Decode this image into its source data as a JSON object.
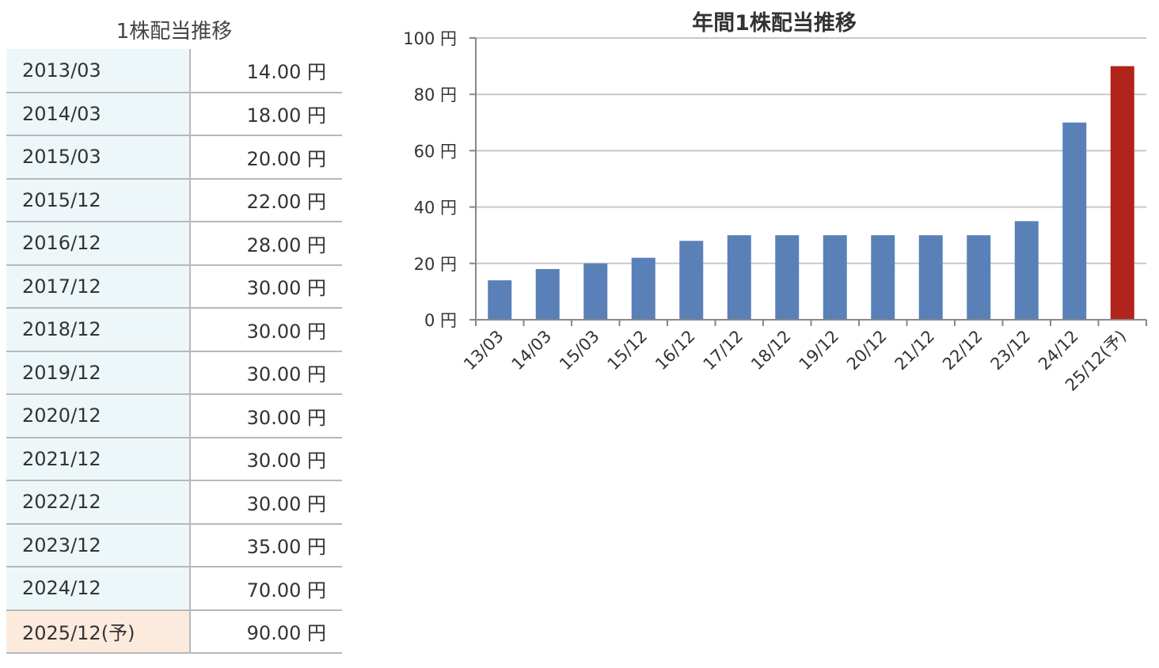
{
  "table": {
    "title": "1株配当推移",
    "unit": "円",
    "rows": [
      {
        "period": "2013/03",
        "amount": "14.00 円"
      },
      {
        "period": "2014/03",
        "amount": "18.00 円"
      },
      {
        "period": "2015/03",
        "amount": "20.00 円"
      },
      {
        "period": "2015/12",
        "amount": "22.00 円"
      },
      {
        "period": "2016/12",
        "amount": "28.00 円"
      },
      {
        "period": "2017/12",
        "amount": "30.00 円"
      },
      {
        "period": "2018/12",
        "amount": "30.00 円"
      },
      {
        "period": "2019/12",
        "amount": "30.00 円"
      },
      {
        "period": "2020/12",
        "amount": "30.00 円"
      },
      {
        "period": "2021/12",
        "amount": "30.00 円"
      },
      {
        "period": "2022/12",
        "amount": "30.00 円"
      },
      {
        "period": "2023/12",
        "amount": "35.00 円"
      },
      {
        "period": "2024/12",
        "amount": "70.00 円"
      },
      {
        "period": "2025/12(予)",
        "amount": "90.00 円",
        "forecast": true
      }
    ],
    "colors": {
      "period_bg": "#edf7fa",
      "forecast_bg": "#fcebdd",
      "border": "#b8b8b8"
    }
  },
  "chart_data": {
    "type": "bar",
    "title": "年間1株配当推移",
    "categories": [
      "13/03",
      "14/03",
      "15/03",
      "15/12",
      "16/12",
      "17/12",
      "18/12",
      "19/12",
      "20/12",
      "21/12",
      "22/12",
      "23/12",
      "24/12",
      "25/12(予)"
    ],
    "values": [
      14,
      18,
      20,
      22,
      28,
      30,
      30,
      30,
      30,
      30,
      30,
      35,
      70,
      90
    ],
    "forecast_index": 13,
    "ylim": [
      0,
      100
    ],
    "yticks": [
      0,
      20,
      40,
      60,
      80,
      100
    ],
    "ytick_labels": [
      "0 円",
      "20 円",
      "40 円",
      "60 円",
      "80 円",
      "100 円"
    ],
    "xlabel": "",
    "ylabel": "",
    "grid": true,
    "legend": "none",
    "colors": {
      "bar": "#5a80b8",
      "forecast_bar": "#b1241c",
      "grid": "#c8c8c8",
      "axis": "#888888",
      "text": "#333333"
    }
  }
}
